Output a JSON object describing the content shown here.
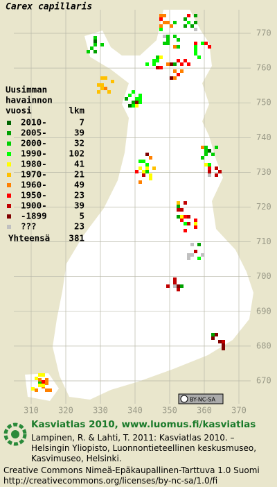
{
  "title": "Carex capillaris",
  "legend": {
    "heading": [
      "Uusimman",
      "havainnon",
      "vuosi"
    ],
    "count_heading": "lkm",
    "rows": [
      {
        "label": "2010-",
        "count": 7,
        "color": "#006400"
      },
      {
        "label": "2005-",
        "count": 39,
        "color": "#00a000"
      },
      {
        "label": "2000-",
        "count": 32,
        "color": "#00d000"
      },
      {
        "label": "1990-",
        "count": 102,
        "color": "#00ff00"
      },
      {
        "label": "1980-",
        "count": 41,
        "color": "#ffff00"
      },
      {
        "label": "1970-",
        "count": 21,
        "color": "#ffc000"
      },
      {
        "label": "1960-",
        "count": 49,
        "color": "#ff8000"
      },
      {
        "label": "1950-",
        "count": 23,
        "color": "#ff0000"
      },
      {
        "label": "1900-",
        "count": 39,
        "color": "#c00000"
      },
      {
        "label": "-1899",
        "count": 5,
        "color": "#800000"
      },
      {
        "label": "???",
        "count": 23,
        "color": "#c0c0c0"
      }
    ],
    "total_label": "Yhteensä",
    "total": 381
  },
  "grid": {
    "y_labels": [
      770,
      760,
      750,
      740,
      730,
      720,
      710,
      700,
      690,
      680,
      670
    ],
    "x_labels": [
      310,
      320,
      330,
      340,
      350,
      360,
      370
    ]
  },
  "badge": "BY-NC-SA",
  "footer": {
    "site": "Kasviatlas 2010, www.luomus.fi/kasviatlas",
    "citation": [
      "Lampinen, R. & Lahti, T. 2011: Kasviatlas 2010. –",
      "Helsingin Yliopisto, Luonnontieteellinen keskusmuseo,",
      "Kasvimuseo, Helsinki."
    ],
    "license": [
      "Creative Commons Nimeä-Epäkaupallinen-Tarttuva 1.0 Suomi",
      "http://creativecommons.org/licenses/by-nc-sa/1.0/fi"
    ]
  }
}
